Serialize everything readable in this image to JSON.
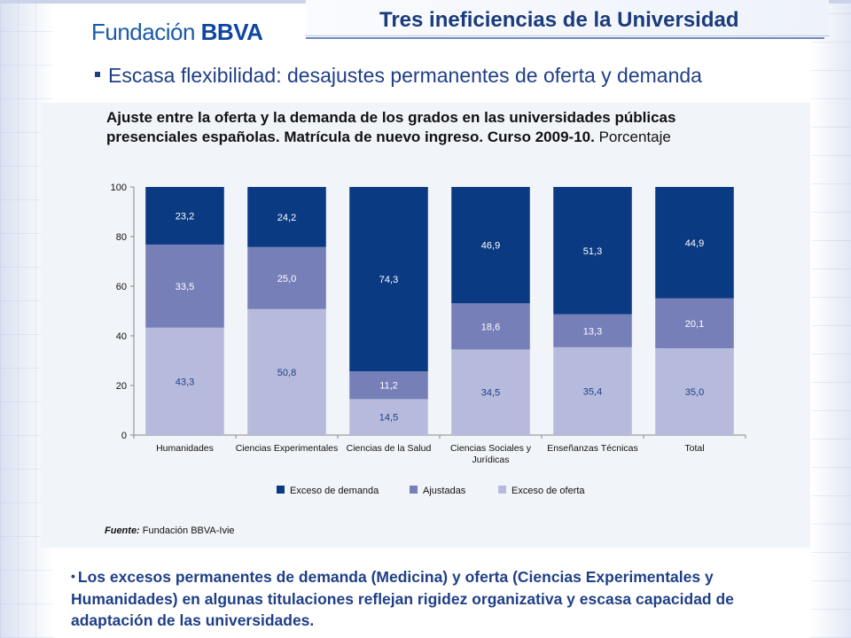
{
  "header": {
    "logo_prefix": "Fundación",
    "logo_brand": "BBVA",
    "title": "Tres ineficiencias de la Universidad"
  },
  "heading": "Escasa flexibilidad: desajustes permanentes de oferta y demanda",
  "chart_data": {
    "type": "bar",
    "stacked": true,
    "title": "Ajuste entre la oferta y la demanda de los grados en las universidades públicas presenciales españolas. Matrícula de nuevo ingreso. Curso 2009-10.",
    "unit_label": "Porcentaje",
    "categories": [
      "Humanidades",
      "Ciencias Experimentales",
      "Ciencias de la Salud",
      "Ciencias Sociales y Jurídicas",
      "Enseñanzas Técnicas",
      "Total"
    ],
    "series": [
      {
        "name": "Exceso de oferta",
        "color": "#b6bbdd",
        "label_color": "#1f3f86",
        "values": [
          43.3,
          50.8,
          14.5,
          34.5,
          35.4,
          35.0
        ],
        "labels": [
          "43,3",
          "50,8",
          "14,5",
          "34,5",
          "35,4",
          "35,0"
        ]
      },
      {
        "name": "Ajustadas",
        "color": "#767fb8",
        "label_color": "#ffffff",
        "values": [
          33.5,
          25.0,
          11.2,
          18.6,
          13.3,
          20.1
        ],
        "labels": [
          "33,5",
          "25,0",
          "11,2",
          "18,6",
          "13,3",
          "20,1"
        ]
      },
      {
        "name": "Exceso de demanda",
        "color": "#0a3a82",
        "label_color": "#ffffff",
        "values": [
          23.2,
          24.2,
          74.3,
          46.9,
          51.3,
          44.9
        ],
        "labels": [
          "23,2",
          "24,2",
          "74,3",
          "46,9",
          "51,3",
          "44,9"
        ]
      }
    ],
    "legend_order": [
      "Exceso de demanda",
      "Ajustadas",
      "Exceso de oferta"
    ],
    "ylim": [
      0,
      100
    ],
    "yticks": [
      0,
      20,
      40,
      60,
      80,
      100
    ],
    "grid": false,
    "legend_position": "bottom"
  },
  "source": {
    "label": "Fuente:",
    "text": " Fundación BBVA-Ivie"
  },
  "bottom_text": "Los excesos permanentes de demanda (Medicina) y oferta (Ciencias Experimentales y Humanidades) en algunas titulaciones reflejan rigidez organizativa y escasa capacidad de adaptación de las universidades."
}
